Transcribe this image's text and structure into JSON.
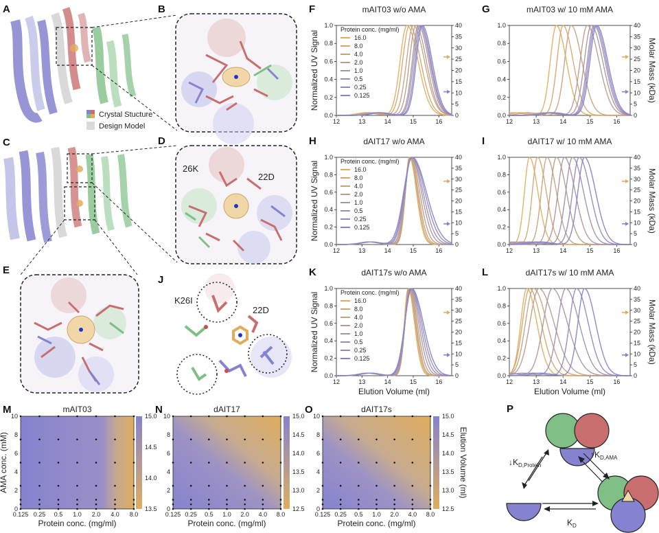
{
  "figure": {
    "colors": {
      "orange": "#e0ad5e",
      "lavender": "#8583cf",
      "green": "#7fbf86",
      "red": "#c96e6e",
      "gray": "#d9d9d9"
    }
  },
  "structure_panels": {
    "A": {
      "label": "A",
      "legend": [
        "Crystal Stucture",
        "Design Model"
      ]
    },
    "B": {
      "label": "B"
    },
    "C": {
      "label": "C"
    },
    "D": {
      "label": "D",
      "residues": [
        "26K",
        "22D"
      ]
    },
    "E": {
      "label": "E"
    },
    "J": {
      "label": "J",
      "residues": [
        "K26I",
        "22D"
      ]
    }
  },
  "chart_data": [
    {
      "id": "F",
      "label": "F",
      "type": "line",
      "title": "mAIT03 w/o AMA",
      "xlabel": "",
      "ylabel": "Normalized UV Signal",
      "y2label": "",
      "xlim": [
        12,
        16.5
      ],
      "ylim": [
        0,
        1
      ],
      "y2lim": [
        0,
        40
      ],
      "xticks": [
        12,
        13,
        14,
        15,
        16
      ],
      "yticks": [
        0.0,
        0.2,
        0.4,
        0.6,
        0.8,
        1.0
      ],
      "y2ticks": [
        0,
        5,
        10,
        15,
        20,
        25,
        30,
        35,
        40
      ],
      "legend_title": "Protein conc. (mg/ml)",
      "concentrations": [
        "16.0",
        "8.0",
        "4.0",
        "2.0",
        "1.0",
        "0.5",
        "0.25",
        "0.125"
      ],
      "peaks": [
        14.75,
        14.85,
        15.0,
        15.1,
        15.2,
        15.25,
        15.3,
        15.35
      ],
      "widths": [
        0.35,
        0.35,
        0.35,
        0.33,
        0.32,
        0.32,
        0.31,
        0.31
      ],
      "molar_mass_arrows": [
        {
          "value": 26,
          "color": "orange"
        },
        {
          "value": 10.5,
          "color": "lavender"
        }
      ]
    },
    {
      "id": "G",
      "label": "G",
      "type": "line",
      "title": "mAIT03 w/ 10 mM AMA",
      "xlabel": "",
      "ylabel": "",
      "y2label": "Molar Mass (kDa)",
      "xlim": [
        12,
        16.5
      ],
      "ylim": [
        0,
        1
      ],
      "y2lim": [
        0,
        40
      ],
      "xticks": [
        12,
        13,
        14,
        15,
        16
      ],
      "yticks": [
        0.0,
        0.2,
        0.4,
        0.6,
        0.8,
        1.0
      ],
      "y2ticks": [
        0,
        5,
        10,
        15,
        20,
        25,
        30,
        35,
        40
      ],
      "concentrations": [
        "16.0",
        "8.0",
        "4.0",
        "2.0",
        "1.0",
        "0.5",
        "0.25",
        "0.125"
      ],
      "peaks": [
        13.75,
        14.0,
        14.3,
        14.9,
        15.05,
        15.15,
        15.2,
        15.25
      ],
      "widths": [
        0.3,
        0.3,
        0.32,
        0.35,
        0.34,
        0.33,
        0.33,
        0.33
      ],
      "molar_mass_arrows": [
        {
          "value": 26,
          "color": "orange"
        },
        {
          "value": 10.5,
          "color": "lavender"
        }
      ]
    },
    {
      "id": "H",
      "label": "H",
      "type": "line",
      "title": "dAIT17 w/o AMA",
      "xlabel": "",
      "ylabel": "Normalized UV Signal",
      "y2label": "",
      "xlim": [
        12,
        16.5
      ],
      "ylim": [
        0,
        1
      ],
      "y2lim": [
        0,
        40
      ],
      "xticks": [
        12,
        13,
        14,
        15,
        16
      ],
      "yticks": [
        0.0,
        0.2,
        0.4,
        0.6,
        0.8,
        1.0
      ],
      "y2ticks": [
        0,
        5,
        10,
        15,
        20,
        25,
        30,
        35,
        40
      ],
      "legend_title": "Protein conc. (mg/ml)",
      "concentrations": [
        "16.0",
        "8.0",
        "4.0",
        "2.0",
        "1.0",
        "0.5",
        "0.25",
        "0.125"
      ],
      "peaks": [
        14.85,
        14.87,
        14.88,
        14.9,
        14.92,
        14.93,
        14.95,
        14.96
      ],
      "widths": [
        0.22,
        0.23,
        0.25,
        0.28,
        0.32,
        0.36,
        0.4,
        0.44
      ],
      "molar_mass_arrows": [
        {
          "value": 29,
          "color": "orange"
        },
        {
          "value": 9.5,
          "color": "lavender"
        }
      ]
    },
    {
      "id": "I",
      "label": "I",
      "type": "line",
      "title": "dAIT17 w/ 10 mM AMA",
      "xlabel": "",
      "ylabel": "",
      "y2label": "Molar Mass (kDa)",
      "xlim": [
        12,
        16.5
      ],
      "ylim": [
        0,
        1
      ],
      "y2lim": [
        0,
        40
      ],
      "xticks": [
        12,
        13,
        14,
        15,
        16
      ],
      "yticks": [
        0.0,
        0.2,
        0.4,
        0.6,
        0.8,
        1.0
      ],
      "y2ticks": [
        0,
        5,
        10,
        15,
        20,
        25,
        30,
        35,
        40
      ],
      "concentrations": [
        "16.0",
        "8.0",
        "4.0",
        "2.0",
        "1.0",
        "0.5",
        "0.25",
        "0.125"
      ],
      "peaks": [
        12.75,
        13.05,
        13.4,
        13.75,
        14.05,
        14.35,
        14.6,
        14.8
      ],
      "widths": [
        0.25,
        0.26,
        0.28,
        0.3,
        0.32,
        0.33,
        0.33,
        0.33
      ],
      "molar_mass_arrows": [
        {
          "value": 29,
          "color": "orange"
        },
        {
          "value": 9.5,
          "color": "lavender"
        }
      ]
    },
    {
      "id": "K",
      "label": "K",
      "type": "line",
      "title": "dAIT17s w/o AMA",
      "xlabel": "Elution Volume (ml)",
      "ylabel": "Normalized UV Signal",
      "y2label": "",
      "xlim": [
        12,
        16.5
      ],
      "ylim": [
        0,
        1
      ],
      "y2lim": [
        0,
        40
      ],
      "xticks": [
        12,
        13,
        14,
        15,
        16
      ],
      "yticks": [
        0.0,
        0.2,
        0.4,
        0.6,
        0.8,
        1.0
      ],
      "y2ticks": [
        0,
        5,
        10,
        15,
        20,
        25,
        30,
        35,
        40
      ],
      "legend_title": "Protein conc. (mg/ml)",
      "concentrations": [
        "16.0",
        "8.0",
        "4.0",
        "2.0",
        "1.0",
        "0.5",
        "0.25",
        "0.125"
      ],
      "peaks": [
        14.8,
        14.82,
        14.84,
        14.86,
        14.88,
        14.9,
        14.92,
        14.94
      ],
      "widths": [
        0.2,
        0.21,
        0.22,
        0.24,
        0.27,
        0.3,
        0.33,
        0.36
      ],
      "molar_mass_arrows": [
        {
          "value": 29,
          "color": "orange"
        },
        {
          "value": 9.5,
          "color": "lavender"
        }
      ]
    },
    {
      "id": "L",
      "label": "L",
      "type": "line",
      "title": "dAIT17s w/ 10 mM AMA",
      "xlabel": "Elution Volume (ml)",
      "ylabel": "",
      "y2label": "Molar Mass (kDa)",
      "xlim": [
        12,
        16.5
      ],
      "ylim": [
        0,
        1
      ],
      "y2lim": [
        0,
        40
      ],
      "xticks": [
        12,
        13,
        14,
        15,
        16
      ],
      "yticks": [
        0.0,
        0.2,
        0.4,
        0.6,
        0.8,
        1.0
      ],
      "y2ticks": [
        0,
        5,
        10,
        15,
        20,
        25,
        30,
        35,
        40
      ],
      "concentrations": [
        "16.0",
        "8.0",
        "4.0",
        "2.0",
        "1.0",
        "0.5",
        "0.25",
        "0.125"
      ],
      "peaks": [
        12.65,
        12.75,
        12.9,
        13.1,
        13.6,
        14.1,
        14.5,
        14.8
      ],
      "widths": [
        0.3,
        0.35,
        0.4,
        0.45,
        0.45,
        0.4,
        0.35,
        0.33
      ],
      "molar_mass_arrows": [
        {
          "value": 29,
          "color": "orange"
        },
        {
          "value": 9.5,
          "color": "lavender"
        }
      ]
    },
    {
      "id": "M",
      "label": "M",
      "type": "heatmap",
      "title": "mAIT03",
      "xlabel": "Protein conc. (mg/ml)",
      "ylabel": "AMA conc. (mM)",
      "xticklabels": [
        "0.125",
        "0.25",
        "0.5",
        "1.0",
        "2.0",
        "4.0",
        "8.0"
      ],
      "yticks": [
        0,
        2,
        4,
        6,
        8,
        10
      ],
      "cbar_ticks": [
        13.5,
        14.0,
        14.5,
        15.0
      ],
      "cbar_range": [
        13.5,
        15.0
      ],
      "cbar_label": "",
      "transition": {
        "x_start": 4.0,
        "x_end": 8.0,
        "shape": "edge"
      }
    },
    {
      "id": "N",
      "label": "N",
      "type": "heatmap",
      "title": "dAIT17",
      "xlabel": "Protein conc. (mg/ml)",
      "ylabel": "",
      "xticklabels": [
        "0.125",
        "0.25",
        "0.5",
        "1.0",
        "2.0",
        "4.0",
        "8.0"
      ],
      "yticks": [
        0,
        2,
        4,
        6,
        8,
        10
      ],
      "cbar_ticks": [
        12.5,
        13.0,
        13.5,
        14.0,
        14.5,
        15.0
      ],
      "cbar_range": [
        12.5,
        15.0
      ],
      "cbar_label": "",
      "transition": {
        "shape": "diagonal"
      }
    },
    {
      "id": "O",
      "label": "O",
      "type": "heatmap",
      "title": "dAIT17s",
      "xlabel": "Protein conc. (mg/ml)",
      "ylabel": "",
      "xticklabels": [
        "0.125",
        "0.25",
        "0.5",
        "1.0",
        "2.0",
        "4.0",
        "8.0"
      ],
      "yticks": [
        0,
        2,
        4,
        6,
        8,
        10
      ],
      "cbar_ticks": [
        12.5,
        13.0,
        13.5,
        14.0,
        14.5,
        15.0
      ],
      "cbar_range": [
        12.5,
        15.0
      ],
      "cbar_label": "Elution Volume (ml)",
      "transition": {
        "shape": "diagonal-strong"
      }
    }
  ],
  "scheme_P": {
    "label": "P",
    "left_arrow_label": "↓K",
    "left_arrow_sub": "D,Protein",
    "right_arrow_label": "↑K",
    "right_arrow_sub": "D,AMA",
    "bottom_arrow_label": "K",
    "bottom_arrow_sub": "D"
  }
}
